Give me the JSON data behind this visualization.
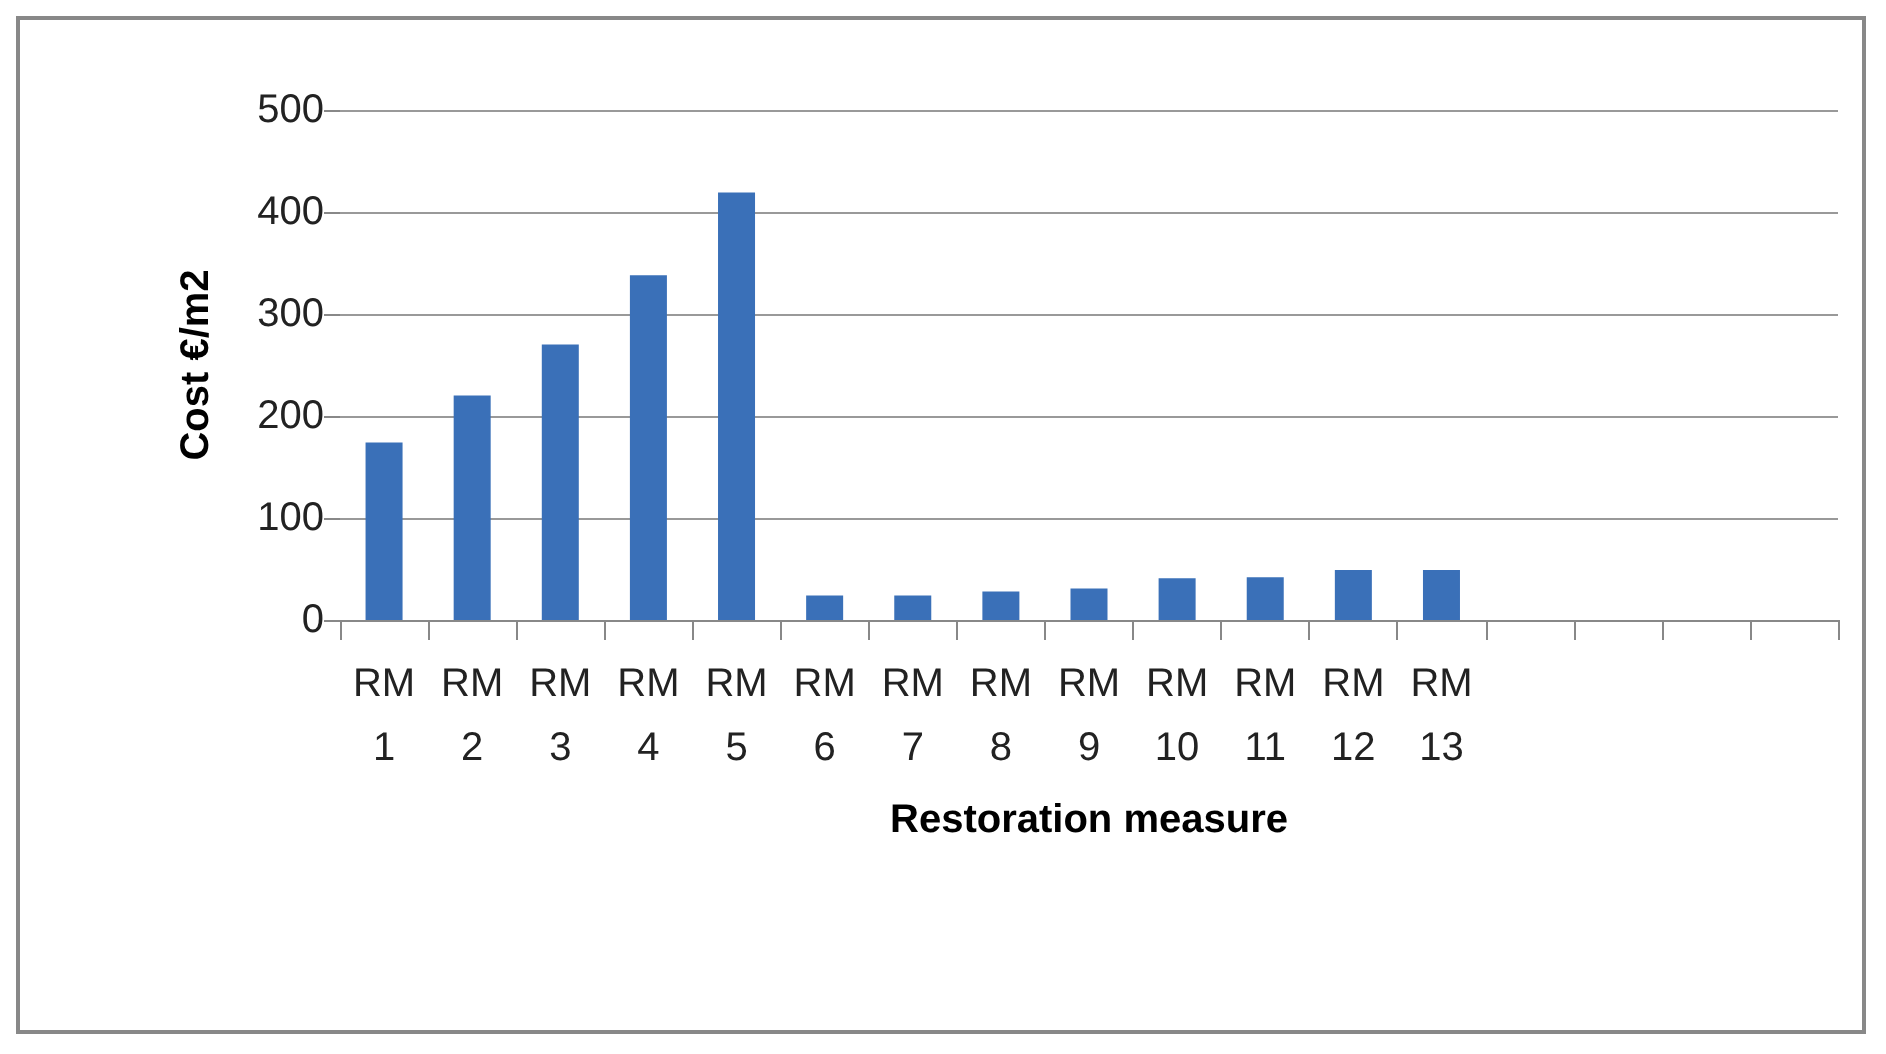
{
  "chart_data": {
    "type": "bar",
    "xlabel": "Restoration measure",
    "ylabel": "Cost €/m2",
    "categories": [
      "RM 1",
      "RM 2",
      "RM 3",
      "RM 4",
      "RM 5",
      "RM 6",
      "RM 7",
      "RM 8",
      "RM 9",
      "RM 10",
      "RM 11",
      "RM 12",
      "RM 13",
      null,
      null,
      null,
      null
    ],
    "values": [
      174,
      220,
      270,
      338,
      419,
      24,
      24,
      28,
      31,
      41,
      42,
      49,
      49,
      null,
      null,
      null,
      null
    ],
    "color": "#3a70b8",
    "ylim": [
      0,
      500
    ],
    "yticks": [
      0,
      100,
      200,
      300,
      400,
      500
    ],
    "grid": "y"
  }
}
